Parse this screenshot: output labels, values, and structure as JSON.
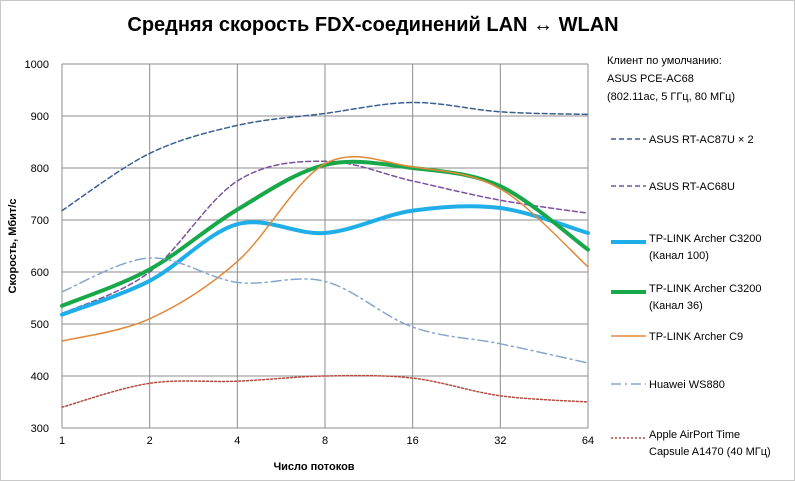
{
  "chart_data": {
    "type": "line",
    "title": "Средняя скорость FDX-соединений LAN ↔ WLAN",
    "xlabel": "Число потоков",
    "ylabel": "Скорость, Мбит/с",
    "x_scale": "log2",
    "x": [
      1,
      2,
      4,
      8,
      16,
      32,
      64
    ],
    "x_ticks": [
      "1",
      "2",
      "4",
      "8",
      "16",
      "32",
      "64"
    ],
    "ylim": [
      300,
      1000
    ],
    "y_ticks": [
      "300",
      "400",
      "500",
      "600",
      "700",
      "800",
      "900",
      "1000"
    ],
    "grid": true,
    "legend_position": "right",
    "legend_header": [
      "Клиент по умолчанию:",
      "ASUS PCE-AC68",
      "(802.11ac, 5 ГГц, 80 МГц)"
    ],
    "series": [
      {
        "name": "ASUS RT-AC87U × 2",
        "lines": [
          "ASUS RT-AC87U × 2"
        ],
        "color": "#3a5f93",
        "style": "dashed",
        "width": 1.5,
        "points": [
          [
            1,
            718
          ],
          [
            2,
            828
          ],
          [
            4,
            882
          ],
          [
            8,
            905
          ],
          [
            16,
            926
          ],
          [
            32,
            908
          ],
          [
            64,
            903
          ]
        ]
      },
      {
        "name": "ASUS RT-AC68U",
        "lines": [
          "ASUS RT-AC68U"
        ],
        "color": "#7a52a0",
        "style": "dashed",
        "width": 1.5,
        "points": [
          [
            1,
            520
          ],
          [
            2,
            600
          ],
          [
            4,
            775
          ],
          [
            8,
            813
          ],
          [
            16,
            775
          ],
          [
            32,
            738
          ],
          [
            64,
            713
          ]
        ]
      },
      {
        "name": "TP-LINK Archer C3200 (Канал 100)",
        "lines": [
          "TP-LINK Archer C3200",
          "(Канал 100)"
        ],
        "color": "#1faee8",
        "style": "solid",
        "width": 4,
        "points": [
          [
            1,
            518
          ],
          [
            2,
            583
          ],
          [
            4,
            692
          ],
          [
            8,
            675
          ],
          [
            16,
            718
          ],
          [
            32,
            723
          ],
          [
            64,
            675
          ]
        ]
      },
      {
        "name": "TP-LINK Archer C3200 (Канал 36)",
        "lines": [
          "TP-LINK Archer C3200",
          "(Канал 36)"
        ],
        "color": "#18a84a",
        "style": "solid",
        "width": 4,
        "points": [
          [
            1,
            535
          ],
          [
            2,
            605
          ],
          [
            4,
            720
          ],
          [
            8,
            806
          ],
          [
            16,
            800
          ],
          [
            32,
            765
          ],
          [
            64,
            643
          ]
        ]
      },
      {
        "name": "TP-LINK Archer C9",
        "lines": [
          "TP-LINK Archer C9"
        ],
        "color": "#e08838",
        "style": "solid",
        "width": 1.5,
        "points": [
          [
            1,
            467
          ],
          [
            2,
            510
          ],
          [
            4,
            620
          ],
          [
            8,
            808
          ],
          [
            16,
            802
          ],
          [
            32,
            760
          ],
          [
            64,
            610
          ]
        ]
      },
      {
        "name": "Huawei WS880",
        "lines": [
          "Huawei WS880"
        ],
        "color": "#86a6cc",
        "style": "dashdot",
        "width": 1.5,
        "points": [
          [
            1,
            562
          ],
          [
            2,
            627
          ],
          [
            4,
            580
          ],
          [
            8,
            582
          ],
          [
            16,
            494
          ],
          [
            32,
            462
          ],
          [
            64,
            425
          ]
        ]
      },
      {
        "name": "Apple AirPort Time Capsule A1470 (40 МГц)",
        "lines": [
          "Apple AirPort Time",
          "Capsule  A1470 (40 МГц)"
        ],
        "color": "#b04d42",
        "style": "dotted",
        "width": 1.5,
        "points": [
          [
            1,
            340
          ],
          [
            2,
            386
          ],
          [
            4,
            390
          ],
          [
            8,
            400
          ],
          [
            16,
            396
          ],
          [
            32,
            362
          ],
          [
            64,
            350
          ]
        ]
      }
    ]
  }
}
